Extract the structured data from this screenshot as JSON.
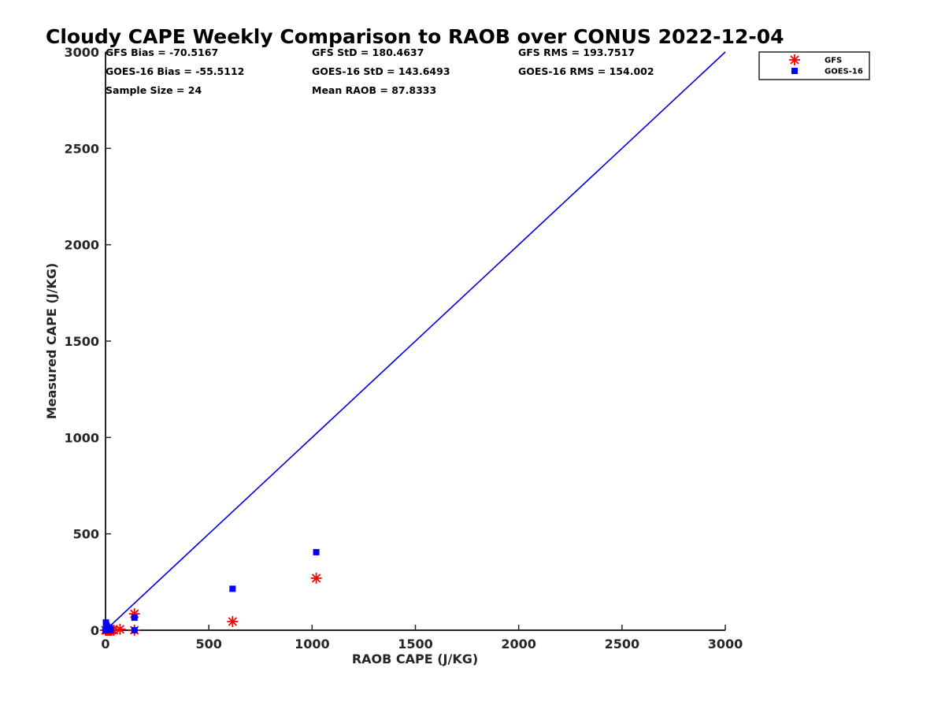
{
  "chart_data": {
    "type": "scatter",
    "title": "Cloudy CAPE Weekly Comparison to RAOB over CONUS 2022-12-04",
    "xlabel": "RAOB CAPE (J/KG)",
    "ylabel": "Measured CAPE (J/KG)",
    "xlim": [
      0,
      3000
    ],
    "ylim": [
      0,
      3000
    ],
    "xticks": [
      "0",
      "500",
      "1000",
      "1500",
      "2000",
      "2500",
      "3000"
    ],
    "yticks": [
      "0",
      "500",
      "1000",
      "1500",
      "2000",
      "2500",
      "3000"
    ],
    "xtick_values": [
      0,
      500,
      1000,
      1500,
      2000,
      2500,
      3000
    ],
    "ytick_values": [
      0,
      500,
      1000,
      1500,
      2000,
      2500,
      3000
    ],
    "grid": false,
    "legend_position": "top-right",
    "reference_line": {
      "x": [
        0,
        3000
      ],
      "y": [
        0,
        3000
      ],
      "color": "#0000dd"
    },
    "stats": [
      [
        "GFS Bias = -70.5167",
        "GFS StD = 180.4637",
        "GFS RMS = 193.7517"
      ],
      [
        "GOES-16 Bias = -55.5112",
        "GOES-16 StD = 143.6493",
        "GOES-16 RMS = 154.002"
      ],
      [
        "Sample Size = 24",
        "Mean RAOB = 87.8333",
        ""
      ]
    ],
    "series": [
      {
        "name": "GFS",
        "marker": "asterisk",
        "color": "#ff0000",
        "points": [
          [
            0,
            0
          ],
          [
            2,
            0
          ],
          [
            5,
            0
          ],
          [
            8,
            0
          ],
          [
            10,
            5
          ],
          [
            15,
            0
          ],
          [
            20,
            0
          ],
          [
            25,
            0
          ],
          [
            30,
            0
          ],
          [
            40,
            0
          ],
          [
            70,
            5
          ],
          [
            140,
            0
          ],
          [
            140,
            85
          ],
          [
            615,
            45
          ],
          [
            1020,
            270
          ]
        ]
      },
      {
        "name": "GOES-16",
        "marker": "square",
        "color": "#0000ff",
        "points": [
          [
            0,
            0
          ],
          [
            2,
            40
          ],
          [
            5,
            10
          ],
          [
            5,
            25
          ],
          [
            8,
            5
          ],
          [
            10,
            15
          ],
          [
            12,
            0
          ],
          [
            15,
            5
          ],
          [
            20,
            10
          ],
          [
            25,
            0
          ],
          [
            140,
            0
          ],
          [
            140,
            65
          ],
          [
            615,
            215
          ],
          [
            1020,
            405
          ]
        ]
      }
    ]
  }
}
